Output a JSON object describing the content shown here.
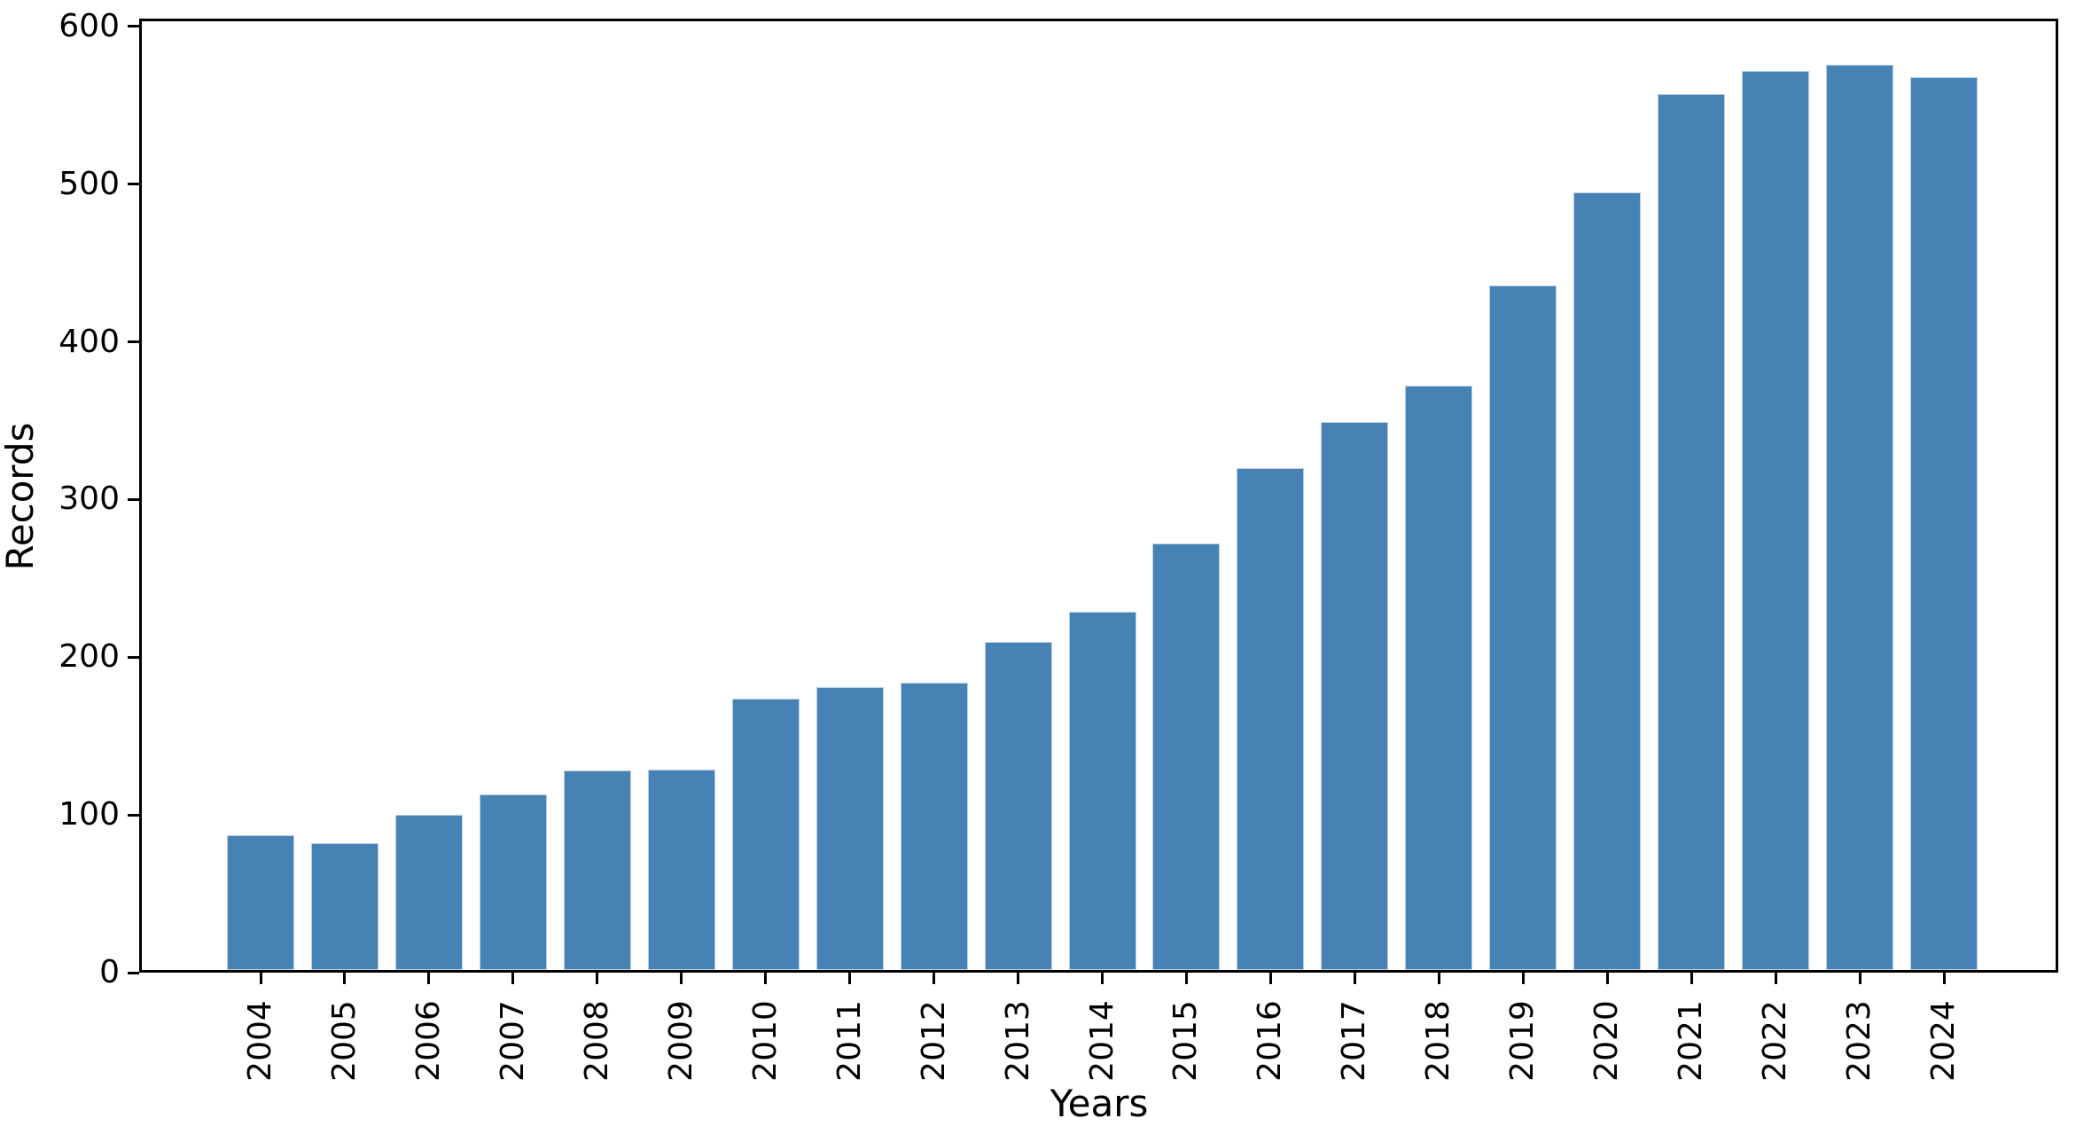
{
  "chart_data": {
    "type": "bar",
    "title": "",
    "xlabel": "Years",
    "ylabel": "Records",
    "categories": [
      "2004",
      "2005",
      "2006",
      "2007",
      "2008",
      "2009",
      "2010",
      "2011",
      "2012",
      "2013",
      "2014",
      "2015",
      "2016",
      "2017",
      "2018",
      "2019",
      "2020",
      "2021",
      "2022",
      "2023",
      "2024"
    ],
    "values": [
      87,
      82,
      100,
      113,
      128,
      129,
      174,
      181,
      184,
      210,
      229,
      272,
      320,
      349,
      372,
      436,
      495,
      557,
      572,
      576,
      568
    ],
    "yticks": [
      0,
      100,
      200,
      300,
      400,
      500,
      600
    ],
    "ylim": [
      0,
      605
    ],
    "grid": false,
    "legend_position": "none",
    "bar_color": "#4682b4",
    "bar_edge_color": "#b9cfe4",
    "axis_color": "#000000",
    "text_color": "#000000",
    "background_color": "#ffffff"
  }
}
